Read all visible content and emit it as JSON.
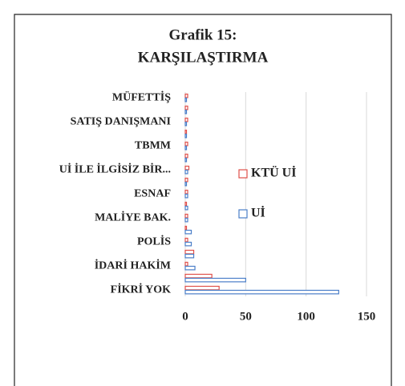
{
  "chart_data": {
    "type": "hbar",
    "title": [
      "Grafik 15:",
      "KARŞILAŞTIRMA"
    ],
    "categories": [
      "FİKRİ YOK",
      null,
      "İDARİ HAKİM",
      null,
      "POLİS",
      null,
      "MALİYE BAK.",
      null,
      "ESNAF",
      null,
      "Uİ İLE İLGİSİZ BİR...",
      null,
      "TBMM",
      null,
      "SATIŞ DANIŞMANI",
      null,
      "MÜFETTİŞ"
    ],
    "series": [
      {
        "name": "KTÜ Uİ",
        "color": "#e0504a",
        "values": [
          28,
          22,
          2,
          7,
          2,
          1,
          2,
          1,
          2,
          2,
          3,
          2,
          2,
          1,
          2,
          2,
          2
        ]
      },
      {
        "name": "Uİ",
        "color": "#4a7ec8",
        "values": [
          127,
          50,
          8,
          7,
          5,
          5,
          2,
          2,
          2,
          1,
          2,
          1,
          1,
          1,
          1,
          1,
          1
        ]
      }
    ],
    "xlim": [
      0,
      150
    ],
    "xticks": [
      0,
      50,
      100,
      150
    ],
    "grid": true,
    "legend": "right"
  }
}
